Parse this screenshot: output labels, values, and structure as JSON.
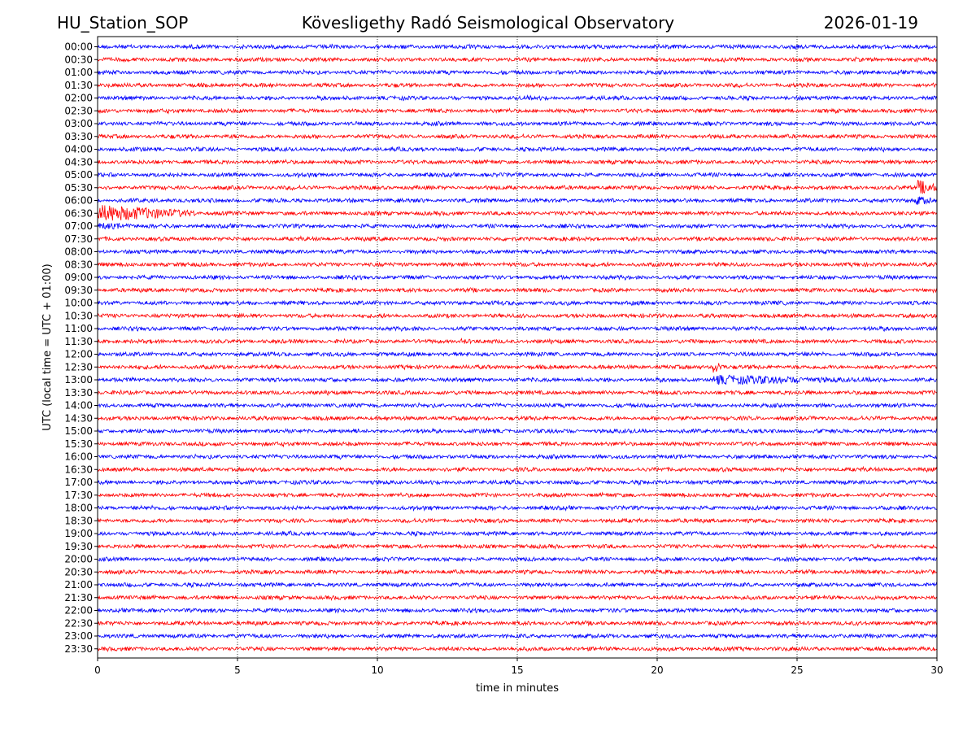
{
  "header": {
    "station": "HU_Station_SOP",
    "observatory": "Kövesligethy Radó Seismological Observatory",
    "date": "2026-01-19"
  },
  "chart_data": {
    "type": "line",
    "title": "Kövesligethy Radó Seismological Observatory",
    "xlabel": "time in minutes",
    "ylabel": "UTC (local time = UTC + 01:00)",
    "xlim": [
      0,
      30
    ],
    "x_ticks": [
      "0",
      "5",
      "10",
      "15",
      "20",
      "25",
      "30"
    ],
    "grid": "vertical dotted lines at 5-minute intervals",
    "trace_colors": [
      "#0000ff",
      "#ff0000"
    ],
    "rows": [
      "00:00",
      "00:30",
      "01:00",
      "01:30",
      "02:00",
      "02:30",
      "03:00",
      "03:30",
      "04:00",
      "04:30",
      "05:00",
      "05:30",
      "06:00",
      "06:30",
      "07:00",
      "07:30",
      "08:00",
      "08:30",
      "09:00",
      "09:30",
      "10:00",
      "10:30",
      "11:00",
      "11:30",
      "12:00",
      "12:30",
      "13:00",
      "13:30",
      "14:00",
      "14:30",
      "15:00",
      "15:30",
      "16:00",
      "16:30",
      "17:00",
      "17:30",
      "18:00",
      "18:30",
      "19:00",
      "19:30",
      "20:00",
      "20:30",
      "21:00",
      "21:30",
      "22:00",
      "22:30",
      "23:00",
      "23:30"
    ],
    "events": [
      {
        "row": "05:30",
        "start_min": 29.3,
        "end_min": 30,
        "amplitude": 5.5
      },
      {
        "row": "06:00",
        "start_min": 29.2,
        "end_min": 30,
        "amplitude": 3.5
      },
      {
        "row": "06:30",
        "start_min": 0,
        "end_min": 3.6,
        "amplitude": 6
      },
      {
        "row": "07:00",
        "start_min": 0,
        "end_min": 2.0,
        "amplitude": 2.5
      },
      {
        "row": "11:30",
        "start_min": 13.0,
        "end_min": 13.8,
        "amplitude": 2
      },
      {
        "row": "12:30",
        "start_min": 22.0,
        "end_min": 22.4,
        "amplitude": 4.5
      },
      {
        "row": "13:00",
        "start_min": 22.0,
        "end_min": 27.0,
        "amplitude": 3.5
      },
      {
        "row": "19:00",
        "start_min": 1.2,
        "end_min": 5.0,
        "amplitude": 1.4
      }
    ]
  }
}
